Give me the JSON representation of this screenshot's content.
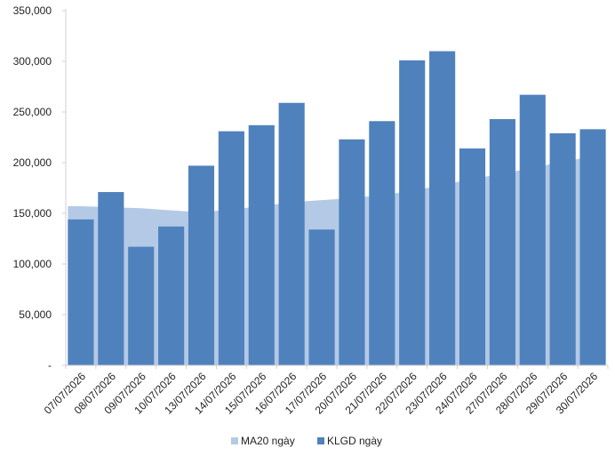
{
  "chart_data": {
    "type": "bar",
    "categories": [
      "07/07/2026",
      "08/07/2026",
      "09/07/2026",
      "10/07/2026",
      "13/07/2026",
      "14/07/2026",
      "15/07/2026",
      "16/07/2026",
      "17/07/2026",
      "20/07/2026",
      "21/07/2026",
      "22/07/2026",
      "23/07/2026",
      "24/07/2026",
      "27/07/2026",
      "28/07/2026",
      "29/07/2026",
      "30/07/2026"
    ],
    "series": [
      {
        "name": "MA20 ngày",
        "render": "area",
        "color": "#b4c9e5",
        "values": [
          157000,
          156000,
          155000,
          153000,
          151000,
          154000,
          157000,
          161000,
          163000,
          165000,
          168000,
          172000,
          178000,
          184000,
          189000,
          195000,
          201000,
          206000
        ]
      },
      {
        "name": "KLGD ngày",
        "render": "bar",
        "color": "#4f81bd",
        "values": [
          144000,
          171000,
          117000,
          137000,
          197000,
          231000,
          237000,
          259000,
          134000,
          223000,
          241000,
          301000,
          310000,
          214000,
          243000,
          267000,
          229000,
          233000
        ]
      }
    ],
    "ylim": [
      0,
      350000
    ],
    "yticks": [
      0,
      50000,
      100000,
      150000,
      200000,
      250000,
      300000,
      350000
    ],
    "ytick_labels": [
      "-",
      "50,000",
      "100,000",
      "150,000",
      "200,000",
      "250,000",
      "300,000",
      "350,000"
    ],
    "legend_position": "bottom",
    "grid": false
  }
}
